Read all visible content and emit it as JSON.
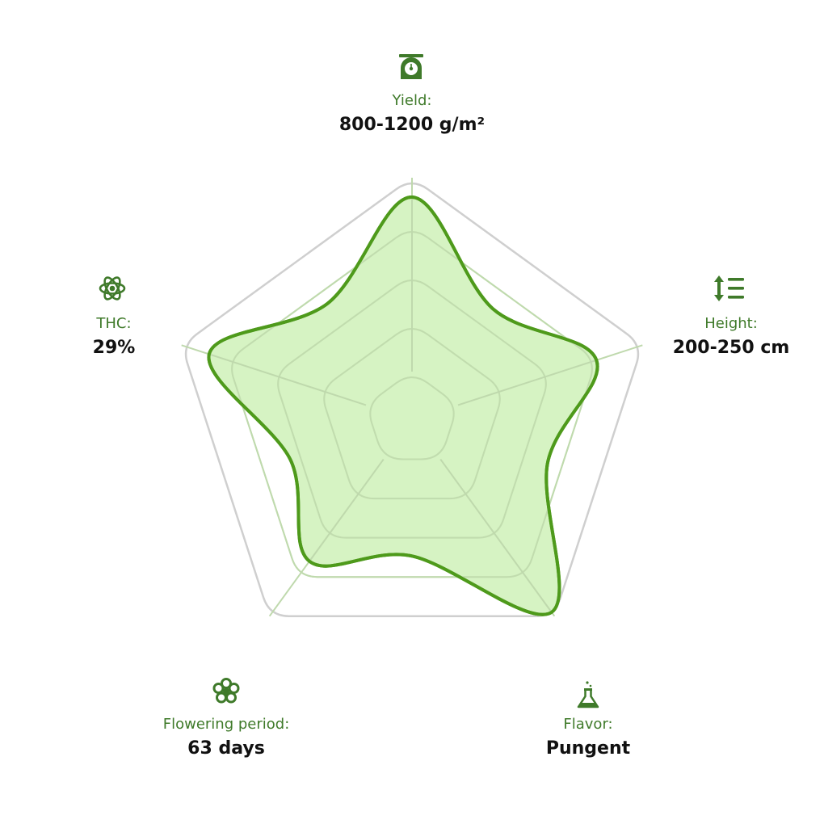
{
  "chart_data": {
    "type": "radar",
    "rings": 5,
    "categories": [
      {
        "key": "yield",
        "label": "Yield:",
        "value": "800-1200 g/m²",
        "icon": "scale-icon",
        "score": 0.92
      },
      {
        "key": "height",
        "label": "Height:",
        "value": "200-250 cm",
        "icon": "height-list-icon",
        "score": 0.8
      },
      {
        "key": "flavor",
        "label": "Flavor:",
        "value": "Pungent",
        "icon": "flask-icon",
        "score": 0.98
      },
      {
        "key": "flowering",
        "label": "Flowering period:",
        "value": "63 days",
        "icon": "flower-icon",
        "score": 0.72
      },
      {
        "key": "thc",
        "label": "THC:",
        "value": "29%",
        "icon": "atom-icon",
        "score": 0.88
      }
    ],
    "colors": {
      "grid": "#cfcfcf",
      "spoke": "#bfd9ad",
      "fill": "#d2f2bd",
      "stroke": "#4e9a1b",
      "icon": "#3f7a2a"
    }
  }
}
